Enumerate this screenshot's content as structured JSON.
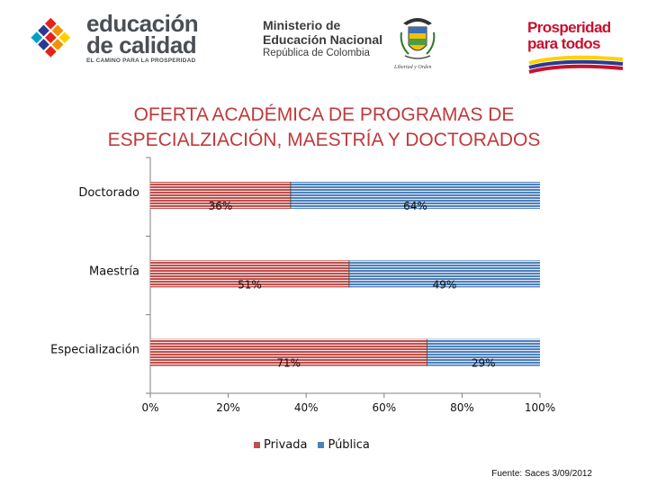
{
  "header": {
    "edu_logo": {
      "line1": "educación",
      "line2": "de calidad",
      "tagline": "EL CAMINO PARA LA PROSPERIDAD"
    },
    "ministry_logo": {
      "line1": "Ministerio de",
      "line2": "Educación Nacional",
      "line3": "República de Colombia",
      "motto": "Libertad y Orden"
    },
    "prosperity_logo": {
      "line1": "Prosperidad",
      "line2": "para todos"
    }
  },
  "title_line1": "OFERTA ACADÉMICA DE PROGRAMAS DE",
  "title_line2": "ESPECIALZIACIÓN, MAESTRÍA Y DOCTORADOS",
  "source": "Fuente: Saces 3/09/2012",
  "colors": {
    "privada": "#c0504d",
    "publica": "#4f81bd",
    "title": "#c0393b"
  },
  "chart_data": {
    "type": "bar",
    "orientation": "horizontal",
    "stacked": "100%",
    "categories": [
      "Doctorado",
      "Maestría",
      "Especialización"
    ],
    "series": [
      {
        "name": "Privada",
        "values": [
          36,
          51,
          71
        ],
        "labels": [
          "36%",
          "51%",
          "71%"
        ]
      },
      {
        "name": "Pública",
        "values": [
          64,
          49,
          29
        ],
        "labels": [
          "64%",
          "49%",
          "29%"
        ]
      }
    ],
    "xlim": [
      0,
      100
    ],
    "x_ticks": [
      "0%",
      "20%",
      "40%",
      "60%",
      "80%",
      "100%"
    ],
    "legend": "bottom",
    "grid": false
  }
}
